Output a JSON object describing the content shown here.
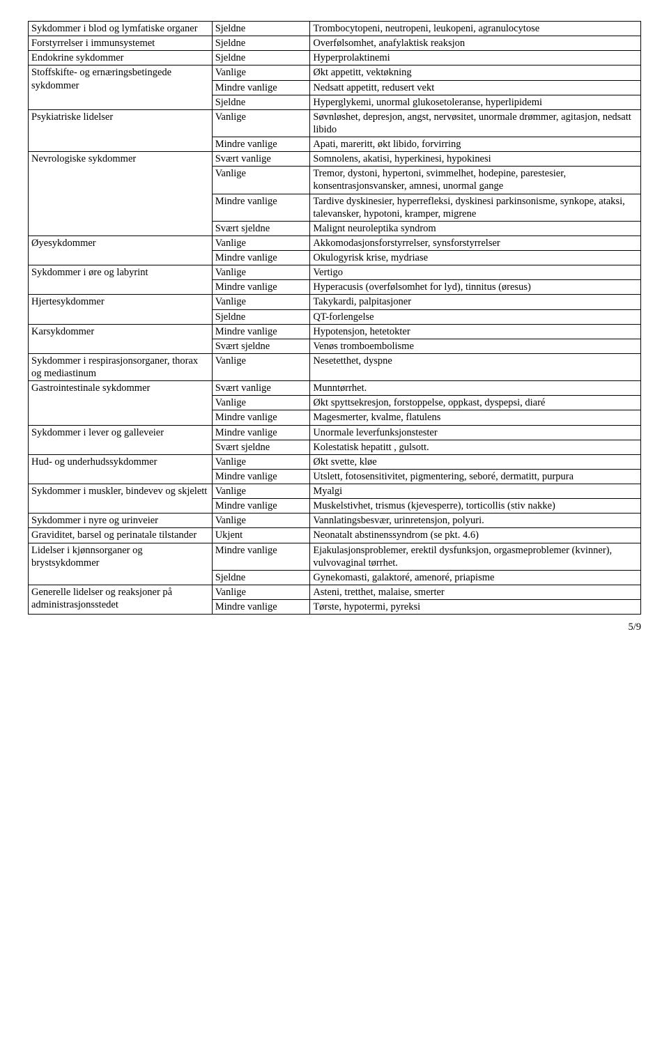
{
  "rows": [
    {
      "c1": "Sykdommer i blod og lymfatiske organer",
      "c2": "Sjeldne",
      "c3": "Trombocytopeni, neutropeni, leukopeni, agranulocytose",
      "rs1": 1
    },
    {
      "c1": "Forstyrrelser i immunsystemet",
      "c2": "Sjeldne",
      "c3": "Overfølsomhet, anafylaktisk reaksjon",
      "rs1": 1
    },
    {
      "c1": "Endokrine sykdommer",
      "c2": "Sjeldne",
      "c3": "Hyperprolaktinemi",
      "rs1": 1
    },
    {
      "c1": "Stoffskifte- og ernæringsbetingede sykdommer",
      "c2": "Vanlige",
      "c3": "Økt appetitt, vektøkning",
      "rs1": 3
    },
    {
      "c2": "Mindre vanlige",
      "c3": "Nedsatt appetitt, redusert vekt"
    },
    {
      "c2": "Sjeldne",
      "c3": "Hyperglykemi, unormal glukosetoleranse, hyperlipidemi"
    },
    {
      "c1": "Psykiatriske lidelser",
      "c2": "Vanlige",
      "c3": "Søvnløshet, depresjon, angst, nervøsitet, unormale drømmer,  agitasjon, nedsatt libido",
      "rs1": 2
    },
    {
      "c2": "Mindre vanlige",
      "c3": "Apati, mareritt, økt libido, forvirring"
    },
    {
      "c1": "Nevrologiske sykdommer",
      "c2": "Svært vanlige",
      "c3": "Somnolens, akatisi, hyperkinesi, hypokinesi",
      "rs1": 4
    },
    {
      "c2": "Vanlige",
      "c3": "Tremor, dystoni, hypertoni, svimmelhet, hodepine, parestesier, konsentrasjonsvansker, amnesi, unormal gange"
    },
    {
      "c2": "Mindre vanlige",
      "c3": "Tardive dyskinesier, hyperrefleksi, dyskinesi parkinsonisme, synkope, ataksi, talevansker, hypotoni, kramper, migrene"
    },
    {
      "c2": "Svært sjeldne",
      "c3": "Malignt neuroleptika syndrom"
    },
    {
      "c1": "Øyesykdommer",
      "c2": "Vanlige",
      "c3": "Akkomodasjonsforstyrrelser, synsforstyrrelser",
      "rs1": 2
    },
    {
      "c2": "Mindre vanlige",
      "c3": "Okulogyrisk krise, mydriase"
    },
    {
      "c1": "Sykdommer i øre og labyrint",
      "c2": "Vanlige",
      "c3": "Vertigo",
      "rs1": 2
    },
    {
      "c2": "Mindre vanlige",
      "c3": "Hyperacusis (overfølsomhet for lyd), tinnitus (øresus)"
    },
    {
      "c1": "Hjertesykdommer",
      "c2": "Vanlige",
      "c3": "Takykardi, palpitasjoner",
      "rs1": 2
    },
    {
      "c2": "Sjeldne",
      "c3": "QT-forlengelse"
    },
    {
      "c1": "Karsykdommer",
      "c2": "Mindre vanlige",
      "c3": "Hypotensjon, hetetokter",
      "rs1": 2
    },
    {
      "c2": "Svært sjeldne",
      "c3": "Venøs tromboembolisme"
    },
    {
      "c1": "Sykdommer i respirasjonsorganer, thorax og mediastinum",
      "c2": "Vanlige",
      "c3": "Nesetetthet, dyspne",
      "rs1": 1
    },
    {
      "c1": "Gastrointestinale sykdommer",
      "c2": "Svært vanlige",
      "c3": "Munntørrhet.",
      "rs1": 3
    },
    {
      "c2": "Vanlige",
      "c3": "Økt spyttsekresjon, forstoppelse, oppkast, dyspepsi, diaré"
    },
    {
      "c2": "Mindre vanlige",
      "c3": "Magesmerter, kvalme, flatulens"
    },
    {
      "c1": "Sykdommer i lever og galleveier",
      "c2": "Mindre vanlige",
      "c3": "Unormale leverfunksjonstester",
      "rs1": 2
    },
    {
      "c2": "Svært sjeldne",
      "c3": "Kolestatisk hepatitt , gulsott."
    },
    {
      "c1": "Hud- og underhudssykdommer",
      "c2": "Vanlige",
      "c3": "Økt svette, kløe",
      "rs1": 2
    },
    {
      "c2": "Mindre vanlige",
      "c3": "Utslett, fotosensitivitet, pigmentering, seboré, dermatitt, purpura"
    },
    {
      "c1": "Sykdommer i muskler, bindevev og skjelett",
      "c2": "Vanlige",
      "c3": "Myalgi",
      "rs1": 2
    },
    {
      "c2": "Mindre vanlige",
      "c3": "Muskelstivhet, trismus (kjevesperre), torticollis (stiv nakke)"
    },
    {
      "c1": "Sykdommer i nyre og urinveier",
      "c2": "Vanlige",
      "c3": "Vannlatingsbesvær, urinretensjon, polyuri.",
      "rs1": 1
    },
    {
      "c1": "Graviditet, barsel og perinatale tilstander",
      "c2": "Ukjent",
      "c3": "Neonatalt abstinenssyndrom (se pkt. 4.6)",
      "rs1": 1
    },
    {
      "c1": "Lidelser i kjønnsorganer og brystsykdommer",
      "c2": "Mindre vanlige",
      "c3": "Ejakulasjonsproblemer, erektil dysfunksjon, orgasmeproblemer (kvinner), vulvovaginal tørrhet.",
      "rs1": 2
    },
    {
      "c2": "Sjeldne",
      "c3": "Gynekomasti, galaktoré, amenoré, priapisme"
    },
    {
      "c1": "Generelle lidelser og reaksjoner på administrasjonsstedet",
      "c2": "Vanlige",
      "c3": "Asteni, tretthet, malaise, smerter",
      "rs1": 2
    },
    {
      "c2": "Mindre vanlige",
      "c3": "Tørste, hypotermi, pyreksi"
    }
  ],
  "footer": "5/9"
}
